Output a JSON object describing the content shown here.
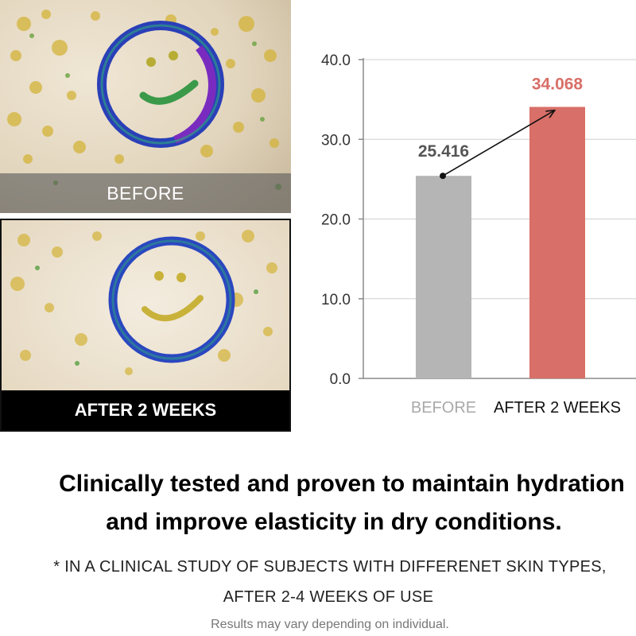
{
  "photos": {
    "before_caption": "BEFORE",
    "after_caption": "AFTER 2 WEEKS"
  },
  "chart_data": {
    "type": "bar",
    "categories": [
      "BEFORE",
      "AFTER 2 WEEKS"
    ],
    "values": [
      25.416,
      34.068
    ],
    "value_labels": [
      "25.416",
      "34.068"
    ],
    "ylim": [
      0,
      40
    ],
    "yticks": [
      "0.0",
      "10.0",
      "20.0",
      "30.0",
      "40.0"
    ],
    "grid": true,
    "colors": [
      "#b5b5b5",
      "#d86f68"
    ],
    "label_colors": [
      "#555555",
      "#d86f68"
    ],
    "category_label_colors": [
      "#a9a9a9",
      "#111111"
    ],
    "annotation": "arrow from BEFORE value to AFTER 2 WEEKS value"
  },
  "headline": {
    "line1": "Clinically tested and proven to maintain hydration",
    "line2": "and improve elasticity in dry conditions."
  },
  "footnote": {
    "line1": "* IN A CLINICAL STUDY OF SUBJECTS WITH DIFFERENET SKIN TYPES,",
    "line2": "AFTER 2-4 WEEKS OF USE"
  },
  "disclaimer": "Results may vary depending on individual."
}
